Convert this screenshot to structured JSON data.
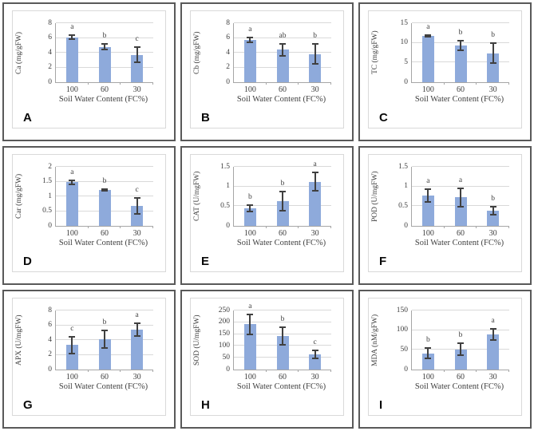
{
  "figure": {
    "x_axis_title": "Soil Water Content (FC%)",
    "categories": [
      "100",
      "60",
      "30"
    ],
    "colors": {
      "bar": "#8EAADB",
      "error_bar": "#404040",
      "gridline": "#D9D9D9",
      "axis": "#A6A6A6",
      "cell_border": "#595959",
      "chart_border": "#D9D9D9",
      "text": "#404040"
    }
  },
  "chart_data": [
    {
      "type": "bar",
      "panel": "A",
      "ylabel": "Ca (mg/gFW)",
      "xlabel": "Soil Water Content (FC%)",
      "categories": [
        "100",
        "60",
        "30"
      ],
      "values": [
        6.1,
        4.8,
        3.7
      ],
      "errors": [
        0.35,
        0.5,
        1.15
      ],
      "sig_letters": [
        "a",
        "b",
        "c"
      ],
      "ylim": [
        0,
        8
      ],
      "yticks": [
        0,
        2,
        4,
        6,
        8
      ],
      "ytick_labels": [
        "0",
        "2",
        "4",
        "6",
        "8"
      ],
      "grid": true,
      "legend": false
    },
    {
      "type": "bar",
      "panel": "B",
      "ylabel": "Cb (mg/gFW)",
      "xlabel": "Soil Water Content (FC%)",
      "categories": [
        "100",
        "60",
        "30"
      ],
      "values": [
        5.7,
        4.4,
        3.8
      ],
      "errors": [
        0.45,
        0.95,
        1.45
      ],
      "sig_letters": [
        "a",
        "ab",
        "b"
      ],
      "ylim": [
        0,
        8
      ],
      "yticks": [
        0,
        2,
        4,
        6,
        8
      ],
      "ytick_labels": [
        "0",
        "2",
        "4",
        "6",
        "8"
      ],
      "grid": true,
      "legend": false
    },
    {
      "type": "bar",
      "panel": "C",
      "ylabel": "TC (mg/gFW)",
      "xlabel": "Soil Water Content (FC%)",
      "categories": [
        "100",
        "60",
        "30"
      ],
      "values": [
        11.8,
        9.3,
        7.4
      ],
      "errors": [
        0.4,
        1.35,
        2.7
      ],
      "sig_letters": [
        "a",
        "b",
        "b"
      ],
      "ylim": [
        0,
        15
      ],
      "yticks": [
        0,
        5,
        10,
        15
      ],
      "ytick_labels": [
        "0",
        "5",
        "10",
        "15"
      ],
      "grid": true,
      "legend": false
    },
    {
      "type": "bar",
      "panel": "D",
      "ylabel": "Car (mg/gFW)",
      "xlabel": "Soil Water Content (FC%)",
      "categories": [
        "100",
        "60",
        "30"
      ],
      "values": [
        1.48,
        1.21,
        0.68
      ],
      "errors": [
        0.1,
        0.05,
        0.3
      ],
      "sig_letters": [
        "a",
        "b",
        "c"
      ],
      "ylim": [
        0,
        2
      ],
      "yticks": [
        0,
        0.5,
        1,
        1.5,
        2
      ],
      "ytick_labels": [
        "0",
        "0.5",
        "1",
        "1.5",
        "2"
      ],
      "grid": true,
      "legend": false
    },
    {
      "type": "bar",
      "panel": "E",
      "ylabel": "CAT (U/mgFW)",
      "xlabel": "Soil Water Content (FC%)",
      "categories": [
        "100",
        "60",
        "30"
      ],
      "values": [
        0.45,
        0.63,
        1.12
      ],
      "errors": [
        0.1,
        0.27,
        0.25
      ],
      "sig_letters": [
        "b",
        "b",
        "a"
      ],
      "ylim": [
        0,
        1.5
      ],
      "yticks": [
        0,
        0.5,
        1,
        1.5
      ],
      "ytick_labels": [
        "0",
        "0.5",
        "1",
        "1.5"
      ],
      "grid": true,
      "legend": false
    },
    {
      "type": "bar",
      "panel": "F",
      "ylabel": "POD (U/mgFW)",
      "xlabel": "Soil Water Content (FC%)",
      "categories": [
        "100",
        "60",
        "30"
      ],
      "values": [
        0.77,
        0.72,
        0.38
      ],
      "errors": [
        0.18,
        0.25,
        0.12
      ],
      "sig_letters": [
        "a",
        "a",
        "b"
      ],
      "ylim": [
        0,
        1.5
      ],
      "yticks": [
        0,
        0.5,
        1,
        1.5
      ],
      "ytick_labels": [
        "0",
        "0.5",
        "1",
        "1.5"
      ],
      "grid": true,
      "legend": false
    },
    {
      "type": "bar",
      "panel": "G",
      "ylabel": "APX (U/mgFW)",
      "xlabel": "Soil Water Content (FC%)",
      "categories": [
        "100",
        "60",
        "30"
      ],
      "values": [
        3.3,
        4.1,
        5.4
      ],
      "errors": [
        1.2,
        1.3,
        1.0
      ],
      "sig_letters": [
        "c",
        "b",
        "a"
      ],
      "ylim": [
        0,
        8
      ],
      "yticks": [
        0,
        2,
        4,
        6,
        8
      ],
      "ytick_labels": [
        "0",
        "2",
        "4",
        "6",
        "8"
      ],
      "grid": true,
      "legend": false
    },
    {
      "type": "bar",
      "panel": "H",
      "ylabel": "SOD (U/mgFW)",
      "xlabel": "Soil Water Content (FC%)",
      "categories": [
        "100",
        "60",
        "30"
      ],
      "values": [
        192,
        142,
        63
      ],
      "errors": [
        45,
        40,
        20
      ],
      "sig_letters": [
        "a",
        "b",
        "c"
      ],
      "ylim": [
        0,
        250
      ],
      "yticks": [
        0,
        50,
        100,
        150,
        200,
        250
      ],
      "ytick_labels": [
        "0",
        "50",
        "100",
        "150",
        "200",
        "250"
      ],
      "grid": true,
      "legend": false
    },
    {
      "type": "bar",
      "panel": "I",
      "ylabel": "MDA (nM/gFW)",
      "xlabel": "Soil Water Content (FC%)",
      "categories": [
        "100",
        "60",
        "30"
      ],
      "values": [
        41,
        51,
        90
      ],
      "errors": [
        15,
        17,
        16
      ],
      "sig_letters": [
        "b",
        "b",
        "a"
      ],
      "ylim": [
        0,
        150
      ],
      "yticks": [
        0,
        50,
        100,
        150
      ],
      "ytick_labels": [
        "0",
        "50",
        "100",
        "150"
      ],
      "grid": true,
      "legend": false
    }
  ]
}
